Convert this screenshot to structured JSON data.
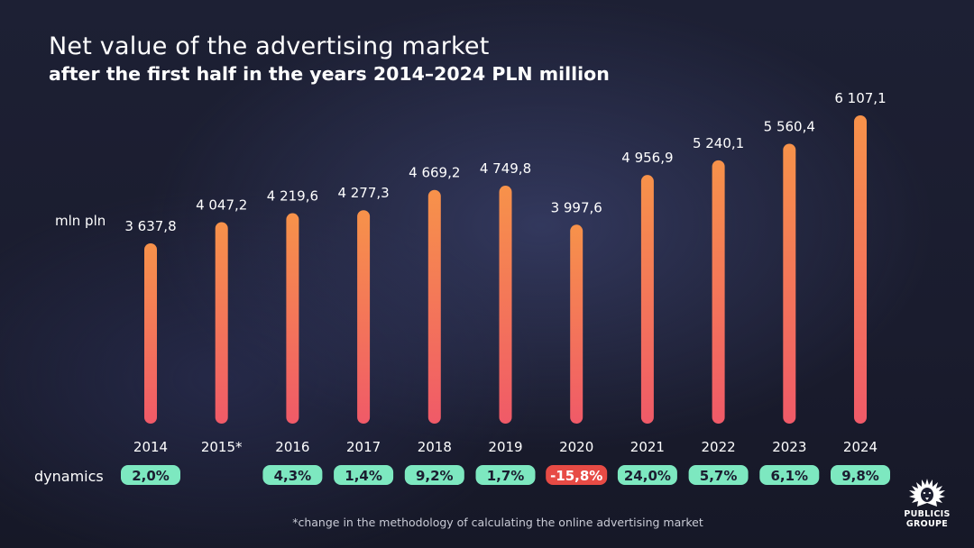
{
  "title": "Net value of the advertising market",
  "subtitle": "after the first half in the years 2014–2024 PLN million",
  "unit_label": "mln pln",
  "dynamics_label": "dynamics",
  "footnote": "*change in the methodology of calculating the online advertising market",
  "logo": {
    "line1": "PUBLICIS",
    "line2": "GROUPE"
  },
  "colors": {
    "bar_top": "#f7924a",
    "bar_bottom": "#f05a68",
    "badge_positive": "#7de8c0",
    "badge_negative": "#e74b45",
    "background": "#1b1d30"
  },
  "chart_data": {
    "type": "bar",
    "categories": [
      "2014",
      "2015*",
      "2016",
      "2017",
      "2018",
      "2019",
      "2020",
      "2021",
      "2022",
      "2023",
      "2024"
    ],
    "values": [
      3637.8,
      4047.2,
      4219.6,
      4277.3,
      4669.2,
      4749.8,
      3997.6,
      4956.9,
      5240.1,
      5560.4,
      6107.1
    ],
    "value_labels": [
      "3 637,8",
      "4 047,2",
      "4 219,6",
      "4 277,3",
      "4 669,2",
      "4 749,8",
      "3 997,6",
      "4 956,9",
      "5 240,1",
      "5 560,4",
      "6 107,1"
    ],
    "dynamics": [
      "2,0%",
      "",
      "4,3%",
      "1,4%",
      "9,2%",
      "1,7%",
      "-15,8%",
      "24,0%",
      "5,7%",
      "6,1%",
      "9,8%"
    ],
    "dynamics_values": [
      2.0,
      null,
      4.3,
      1.4,
      9.2,
      1.7,
      -15.8,
      24.0,
      5.7,
      6.1,
      9.8
    ],
    "grid": false,
    "legend": "none"
  }
}
